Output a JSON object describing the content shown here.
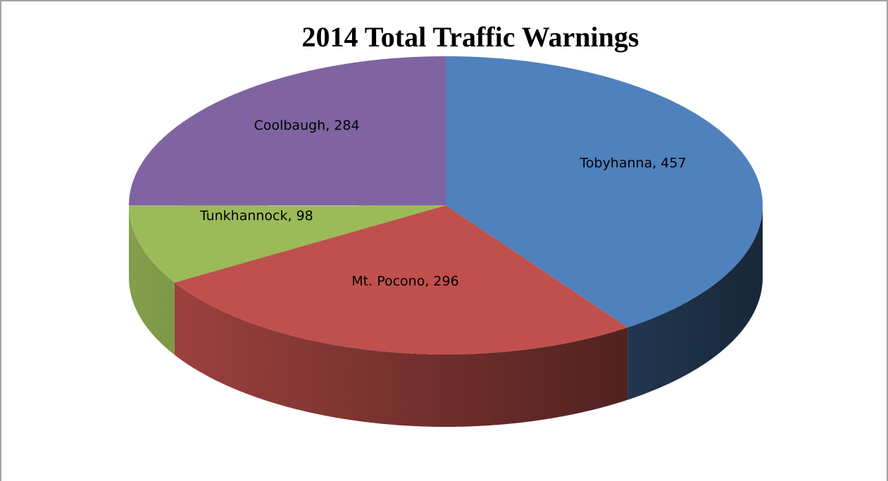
{
  "chart_data": {
    "type": "pie3d",
    "title": "2014 Total Traffic Warnings",
    "values": [
      457,
      296,
      98,
      284
    ],
    "value_labels": [
      "Tobyhanna, 457",
      "Mt. Pocono, 296",
      "Tunkhannock, 98",
      "Coolbaugh, 284"
    ],
    "colors": [
      "#4f81bd",
      "#c0504d",
      "#9bbb59",
      "#8064a2"
    ]
  }
}
